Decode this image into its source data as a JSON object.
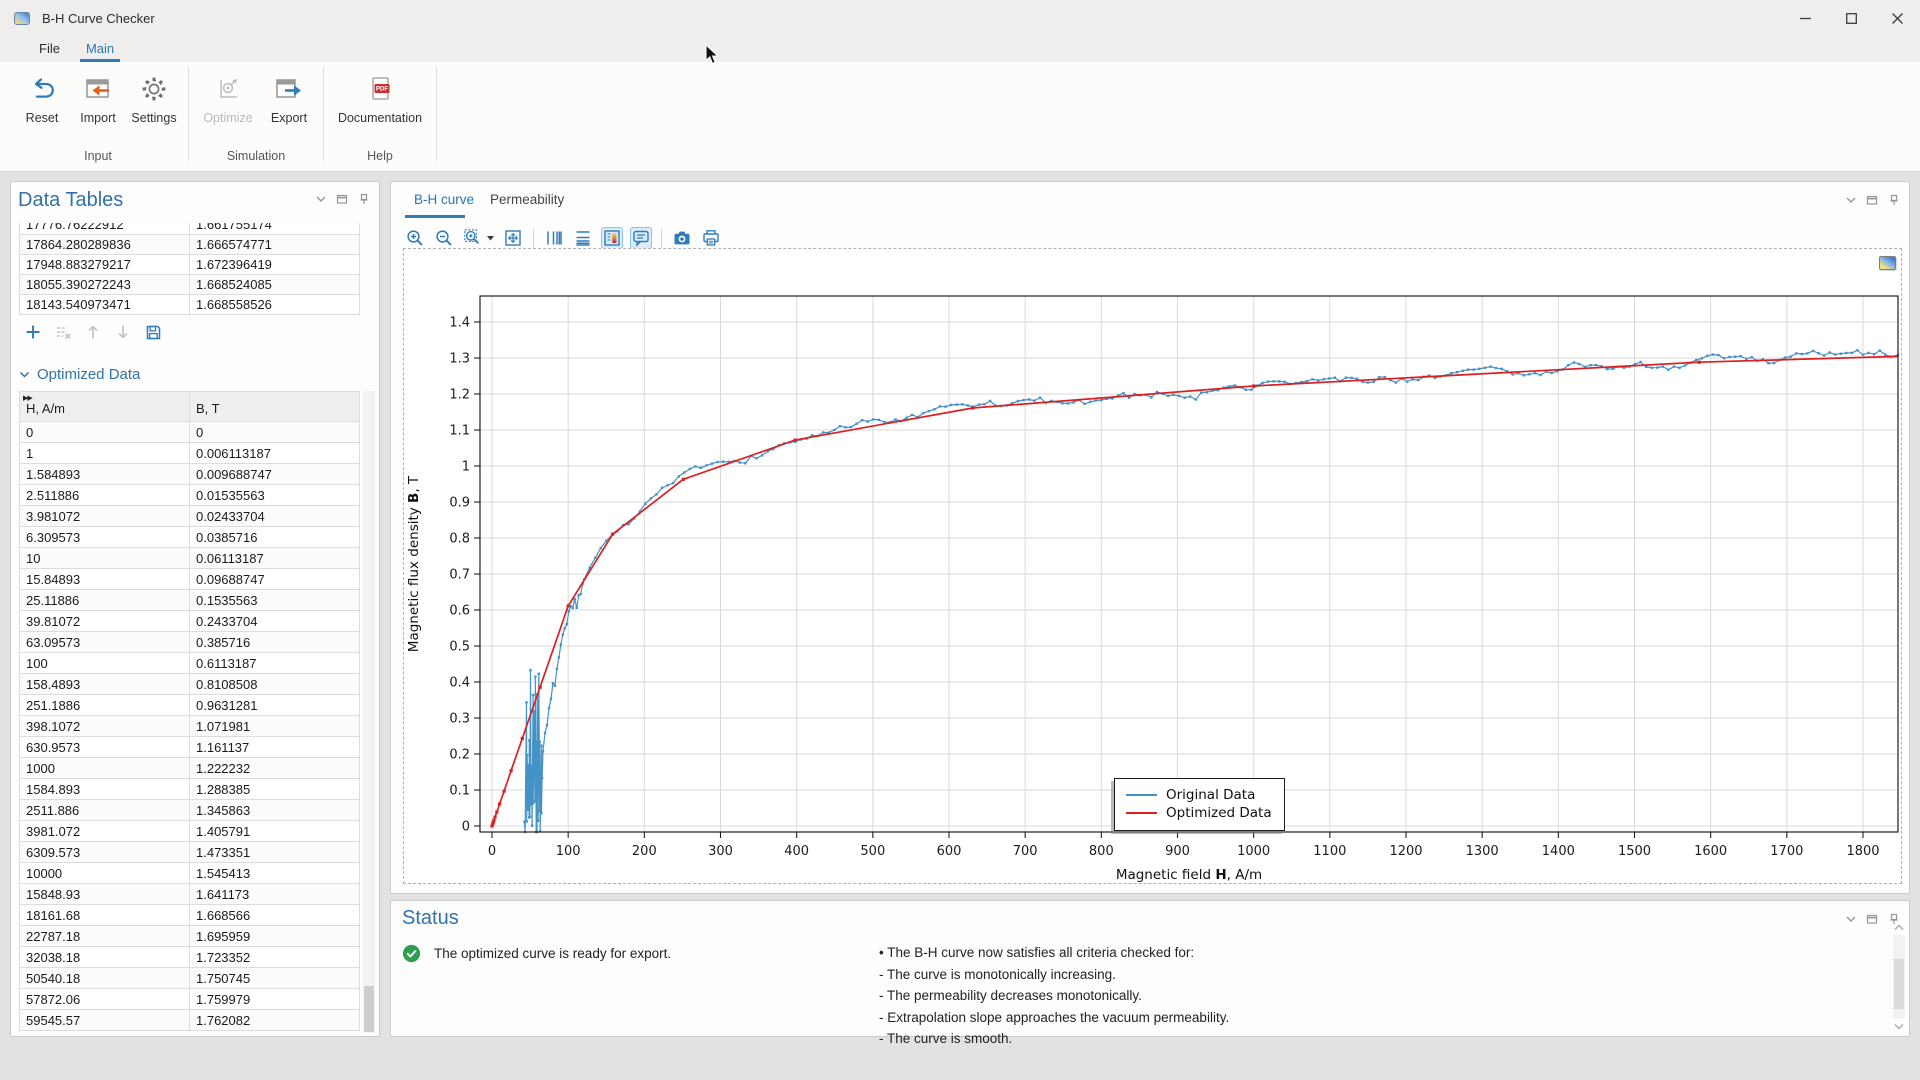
{
  "window": {
    "title": "B-H Curve Checker"
  },
  "menu": {
    "items": [
      {
        "label": "File"
      },
      {
        "label": "Main",
        "active": true
      }
    ]
  },
  "ribbon": {
    "groups": [
      {
        "label": "Input",
        "buttons": [
          {
            "label": "Reset",
            "icon": "reset-icon"
          },
          {
            "label": "Import",
            "icon": "import-icon"
          },
          {
            "label": "Settings",
            "icon": "settings-icon"
          }
        ]
      },
      {
        "label": "Simulation",
        "buttons": [
          {
            "label": "Optimize",
            "icon": "optimize-icon",
            "disabled": true
          },
          {
            "label": "Export",
            "icon": "export-icon"
          }
        ]
      },
      {
        "label": "Help",
        "buttons": [
          {
            "label": "Documentation",
            "icon": "pdf-document-icon",
            "badge": "PDF"
          }
        ]
      }
    ]
  },
  "left_panel": {
    "title": "Data Tables",
    "raw_table": {
      "rows": [
        [
          "17776.76222912",
          "1.661755174"
        ],
        [
          "17864.280289836",
          "1.666574771"
        ],
        [
          "17948.883279217",
          "1.672396419"
        ],
        [
          "18055.390272243",
          "1.668524085"
        ],
        [
          "18143.540973471",
          "1.668558526"
        ]
      ]
    },
    "table_toolbar_icons": [
      "add-row-icon",
      "delete-rows-icon",
      "move-up-icon",
      "move-down-icon",
      "save-table-icon"
    ],
    "section": {
      "label": "Optimized Data"
    },
    "optimized_table": {
      "headers": [
        "H, A/m",
        "B, T"
      ],
      "rows": [
        [
          "0",
          "0"
        ],
        [
          "1",
          "0.006113187"
        ],
        [
          "1.584893",
          "0.009688747"
        ],
        [
          "2.511886",
          "0.01535563"
        ],
        [
          "3.981072",
          "0.02433704"
        ],
        [
          "6.309573",
          "0.0385716"
        ],
        [
          "10",
          "0.06113187"
        ],
        [
          "15.84893",
          "0.09688747"
        ],
        [
          "25.11886",
          "0.1535563"
        ],
        [
          "39.81072",
          "0.2433704"
        ],
        [
          "63.09573",
          "0.385716"
        ],
        [
          "100",
          "0.6113187"
        ],
        [
          "158.4893",
          "0.8108508"
        ],
        [
          "251.1886",
          "0.9631281"
        ],
        [
          "398.1072",
          "1.071981"
        ],
        [
          "630.9573",
          "1.161137"
        ],
        [
          "1000",
          "1.222232"
        ],
        [
          "1584.893",
          "1.288385"
        ],
        [
          "2511.886",
          "1.345863"
        ],
        [
          "3981.072",
          "1.405791"
        ],
        [
          "6309.573",
          "1.473351"
        ],
        [
          "10000",
          "1.545413"
        ],
        [
          "15848.93",
          "1.641173"
        ],
        [
          "18161.68",
          "1.668566"
        ],
        [
          "22787.18",
          "1.695959"
        ],
        [
          "32038.18",
          "1.723352"
        ],
        [
          "50540.18",
          "1.750745"
        ],
        [
          "57872.06",
          "1.759979"
        ],
        [
          "59545.57",
          "1.762082"
        ]
      ]
    }
  },
  "plot_panel": {
    "tabs": [
      {
        "label": "B-H curve",
        "active": true
      },
      {
        "label": "Permeability"
      }
    ],
    "toolbar_icons": [
      "zoom-in",
      "zoom-out",
      "zoom-box",
      "zoom-box-dropdown",
      "zoom-extents",
      "x-log-scale",
      "y-log-scale",
      "legend-toggle",
      "tooltip-toggle",
      "image-snapshot",
      "print"
    ],
    "panel_control_icons": [
      "collapse-icon",
      "float-icon",
      "pin-icon"
    ]
  },
  "chart_data": {
    "type": "line",
    "title": "",
    "xlabel": "Magnetic field H, A/m",
    "xlabel_parts": {
      "pre": "Magnetic field ",
      "sym": "H",
      "post": ", A/m"
    },
    "ylabel": "Magnetic flux density B, T",
    "ylabel_parts": {
      "pre": "Magnetic flux density ",
      "sym": "B",
      "post": ", T"
    },
    "xlim": [
      -16,
      1846
    ],
    "ylim": [
      -0.017,
      1.472
    ],
    "grid": true,
    "xticks": [
      0,
      100,
      200,
      300,
      400,
      500,
      600,
      700,
      800,
      900,
      1000,
      1100,
      1200,
      1300,
      1400,
      1500,
      1600,
      1700,
      1800
    ],
    "yticks": [
      0,
      0.1,
      0.2,
      0.3,
      0.4,
      0.5,
      0.6,
      0.7,
      0.8,
      0.9,
      1,
      1.1,
      1.2,
      1.3,
      1.4
    ],
    "legend": {
      "position": "inside-lower-center-right",
      "entries": [
        {
          "label": "Original Data",
          "color": "#4592c6"
        },
        {
          "label": "Optimized Data",
          "color": "#dc1f1f"
        }
      ]
    },
    "series": [
      {
        "name": "Optimized Data",
        "color": "#dc1f1f",
        "marker": "square",
        "points": [
          [
            0,
            0
          ],
          [
            1,
            0.006113187
          ],
          [
            1.584893,
            0.009688747
          ],
          [
            2.511886,
            0.01535563
          ],
          [
            3.981072,
            0.02433704
          ],
          [
            6.309573,
            0.0385716
          ],
          [
            10,
            0.06113187
          ],
          [
            15.84893,
            0.09688747
          ],
          [
            25.11886,
            0.1535563
          ],
          [
            39.81072,
            0.2433704
          ],
          [
            63.09573,
            0.385716
          ],
          [
            100,
            0.6113187
          ],
          [
            158.4893,
            0.8108508
          ],
          [
            251.1886,
            0.9631281
          ],
          [
            398.1072,
            1.071981
          ],
          [
            630.9573,
            1.161137
          ],
          [
            1000,
            1.222232
          ],
          [
            1584.893,
            1.288385
          ],
          [
            2511.886,
            1.345863
          ],
          [
            3981.072,
            1.405791
          ],
          [
            6309.573,
            1.473351
          ],
          [
            10000,
            1.545413
          ],
          [
            15848.93,
            1.641173
          ],
          [
            18161.68,
            1.668566
          ],
          [
            22787.18,
            1.695959
          ],
          [
            32038.18,
            1.723352
          ],
          [
            50540.18,
            1.750745
          ],
          [
            57872.06,
            1.759979
          ],
          [
            59545.57,
            1.762082
          ]
        ]
      },
      {
        "name": "Original Data",
        "color": "#4592c6",
        "marker": "square",
        "generated": {
          "description": "noisy measured data scattered about the optimized curve",
          "seed": 7,
          "h_range": [
            42,
            1843
          ],
          "cluster": {
            "h0": 44,
            "h1": 66,
            "count": 30,
            "b_max": 0.44
          },
          "noise": 0.018
        }
      }
    ]
  },
  "status_panel": {
    "title": "Status",
    "message": "The optimized curve is ready for export.",
    "details": [
      "• The B-H curve now satisfies all criteria checked for:",
      "- The curve is monotonically increasing.",
      "- The permeability decreases monotonically.",
      "- Extrapolation slope approaches the vacuum permeability.",
      "- The curve is smooth."
    ]
  }
}
